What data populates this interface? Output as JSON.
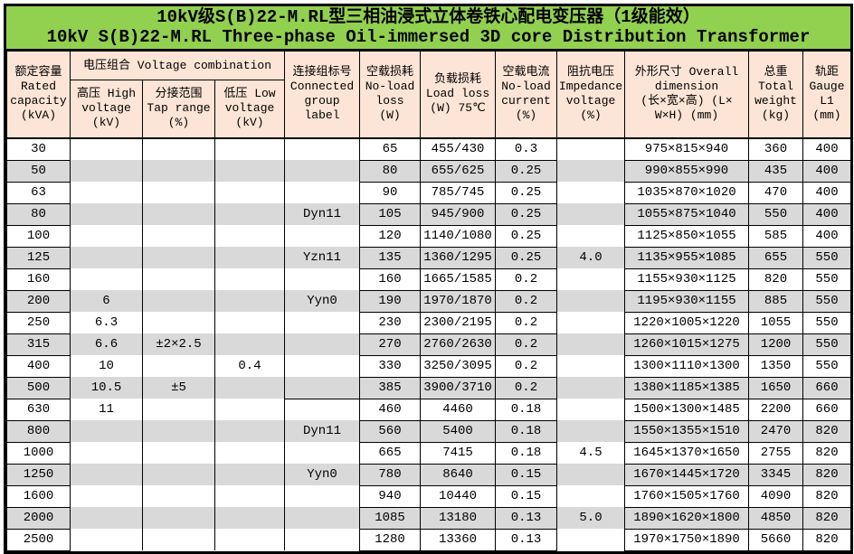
{
  "title": {
    "line1": "10kV级S(B)22-M.RL型三相油浸式立体卷铁心配电变压器（1级能效）",
    "line2": "10kV S(B)22-M.RL Three-phase Oil-immersed 3D core Distribution Transformer"
  },
  "colors": {
    "title_bg": "#92d050",
    "header_bg": "#fce4d6",
    "band_gray": "#d9d9d9",
    "border": "#000000"
  },
  "header": {
    "rated": "额定容量\nRated\ncapacity\n(kVA)",
    "voltage_combination": "电压组合 Voltage combination",
    "hv": "高压 High\nvoltage\n(kV)",
    "tap": "分接范围\nTap range\n(%)",
    "lv": "低压 Low\nvoltage\n(kV)",
    "group": "连接组标号\nConnected\ngroup\nlabel",
    "no_load_loss": "空载损耗\nNo-load\nloss\n(W)",
    "load_loss": "负载损耗\nLoad loss\n(W) 75℃",
    "no_load_current": "空载电流\nNo-load\ncurrent\n(%)",
    "impedance": "阻抗电压\nImpedance\nvoltage\n(%)",
    "dimension": "外形尺寸 Overall\ndimension\n(长×宽×高) (L×\nW×H) (mm)",
    "weight": "总重\nTotal\nweight\n(kg)",
    "gauge": "轨距\nGauge\nL1\n(mm)"
  },
  "columns": [
    "capacity",
    "hv",
    "tap",
    "lv",
    "group",
    "no-load-loss",
    "load-loss",
    "no-load-current",
    "impedance",
    "dimension",
    "weight",
    "gauge"
  ],
  "rows": [
    [
      "30",
      "",
      "",
      "",
      "",
      "65",
      "455/430",
      "0.3",
      "",
      "975×815×940",
      "360",
      "400"
    ],
    [
      "50",
      "",
      "",
      "",
      "",
      "80",
      "655/625",
      "0.25",
      "",
      "990×855×990",
      "435",
      "400"
    ],
    [
      "63",
      "",
      "",
      "",
      "",
      "90",
      "785/745",
      "0.25",
      "",
      "1035×870×1020",
      "470",
      "400"
    ],
    [
      "80",
      "",
      "",
      "",
      "Dyn11",
      "105",
      "945/900",
      "0.25",
      "",
      "1055×875×1040",
      "550",
      "400"
    ],
    [
      "100",
      "",
      "",
      "",
      "",
      "120",
      "1140/1080",
      "0.25",
      "",
      "1125×850×1055",
      "585",
      "400"
    ],
    [
      "125",
      "",
      "",
      "",
      "Yzn11",
      "135",
      "1360/1295",
      "0.25",
      "4.0",
      "1135×955×1085",
      "655",
      "550"
    ],
    [
      "160",
      "",
      "",
      "",
      "",
      "160",
      "1665/1585",
      "0.2",
      "",
      "1155×930×1125",
      "820",
      "550"
    ],
    [
      "200",
      "6",
      "",
      "",
      "Yyn0",
      "190",
      "1970/1870",
      "0.2",
      "",
      "1195×930×1155",
      "885",
      "550"
    ],
    [
      "250",
      "6.3",
      "",
      "",
      "",
      "230",
      "2300/2195",
      "0.2",
      "",
      "1220×1005×1220",
      "1055",
      "550"
    ],
    [
      "315",
      "6.6",
      "±2×2.5",
      "",
      "",
      "270",
      "2760/2630",
      "0.2",
      "",
      "1260×1015×1275",
      "1200",
      "550"
    ],
    [
      "400",
      "10",
      "",
      "0.4",
      "",
      "330",
      "3250/3095",
      "0.2",
      "",
      "1300×1110×1300",
      "1350",
      "550"
    ],
    [
      "500",
      "10.5",
      "±5",
      "",
      "",
      "385",
      "3900/3710",
      "0.2",
      "",
      "1380×1185×1385",
      "1650",
      "660"
    ],
    [
      "630",
      "11",
      "",
      "",
      "",
      "460",
      "4460",
      "0.18",
      "",
      "1500×1300×1485",
      "2200",
      "660"
    ],
    [
      "800",
      "",
      "",
      "",
      "Dyn11",
      "560",
      "5400",
      "0.18",
      "",
      "1550×1355×1510",
      "2470",
      "820"
    ],
    [
      "1000",
      "",
      "",
      "",
      "",
      "665",
      "7415",
      "0.18",
      "4.5",
      "1645×1370×1650",
      "2755",
      "820"
    ],
    [
      "1250",
      "",
      "",
      "",
      "Yyn0",
      "780",
      "8640",
      "0.15",
      "",
      "1670×1445×1720",
      "3345",
      "820"
    ],
    [
      "1600",
      "",
      "",
      "",
      "",
      "940",
      "10440",
      "0.15",
      "",
      "1760×1505×1760",
      "4090",
      "820"
    ],
    [
      "2000",
      "",
      "",
      "",
      "",
      "1085",
      "13180",
      "0.13",
      "5.0",
      "1890×1620×1800",
      "4850",
      "820"
    ],
    [
      "2500",
      "",
      "",
      "",
      "",
      "1280",
      "13360",
      "0.13",
      "",
      "1970×1750×1890",
      "5660",
      "820"
    ]
  ]
}
